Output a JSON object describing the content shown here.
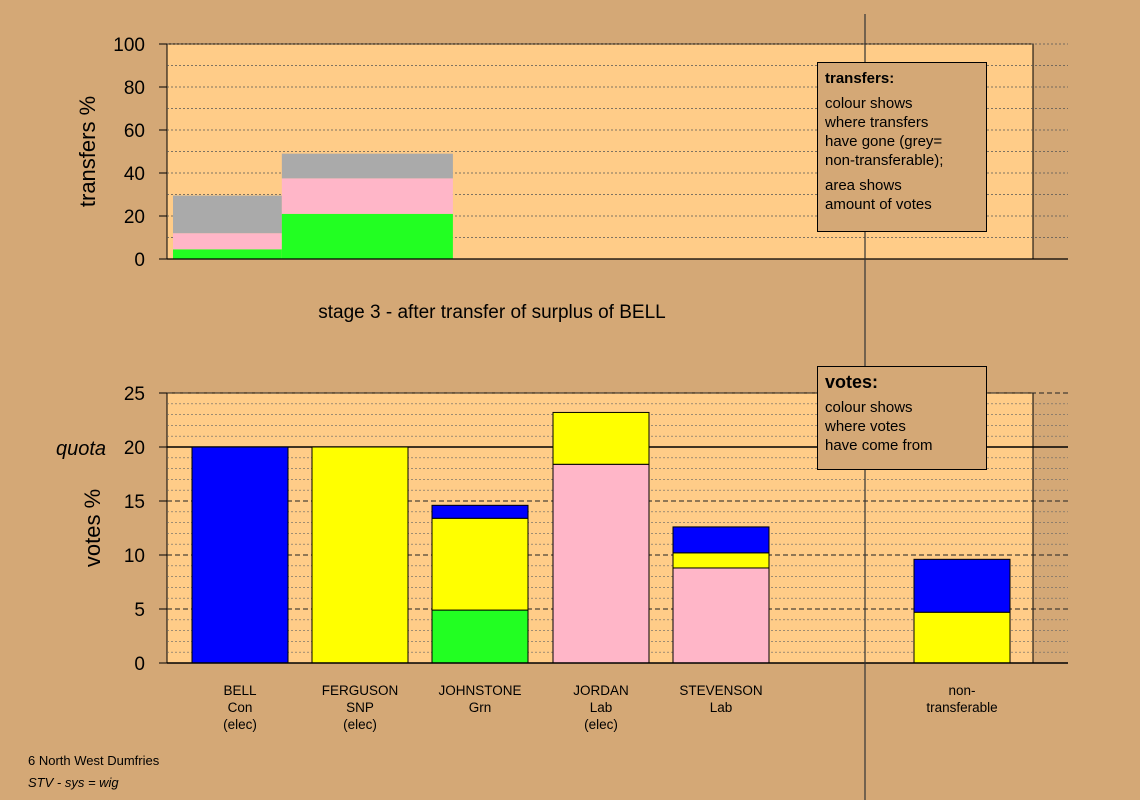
{
  "chart_data": [
    {
      "type": "bar",
      "panel": "transfers",
      "ylabel": "transfers %",
      "ylim": [
        0,
        100
      ],
      "yticks": [
        0,
        20,
        40,
        60,
        80,
        100
      ],
      "title": "stage 3 - after transfer of surplus of BELL",
      "stacked_blocks": [
        {
          "x_start": 0,
          "x_end": 3.5,
          "segments": [
            {
              "color": "#22ff22",
              "value": 4.5
            },
            {
              "color": "#ffb6c8",
              "value": 7.5
            },
            {
              "color": "#aaaaaa",
              "value": 17.5
            }
          ]
        },
        {
          "x_start": 3.5,
          "x_end": 9,
          "segments": [
            {
              "color": "#22ff22",
              "value": 21
            },
            {
              "color": "#ffb6c8",
              "value": 16.5
            },
            {
              "color": "#aaaaaa",
              "value": 11.5
            }
          ]
        }
      ]
    },
    {
      "type": "bar",
      "panel": "votes",
      "ylabel": "votes %",
      "ylim": [
        0,
        25
      ],
      "yticks": [
        0,
        5,
        10,
        15,
        20,
        25
      ],
      "quota": {
        "value": 20,
        "label": "quota"
      },
      "categories": [
        {
          "lines": [
            "BELL",
            "Con",
            "(elec)"
          ],
          "segments": [
            {
              "color": "#0000ff",
              "value": 20
            }
          ]
        },
        {
          "lines": [
            "FERGUSON",
            "SNP",
            "(elec)"
          ],
          "segments": [
            {
              "color": "#ffff00",
              "value": 20
            }
          ]
        },
        {
          "lines": [
            "JOHNSTONE",
            "Grn"
          ],
          "segments": [
            {
              "color": "#22ff22",
              "value": 4.9
            },
            {
              "color": "#ffff00",
              "value": 8.5
            },
            {
              "color": "#0000ff",
              "value": 1.2
            }
          ]
        },
        {
          "lines": [
            "JORDAN",
            "Lab",
            "(elec)"
          ],
          "segments": [
            {
              "color": "#ffb6c8",
              "value": 18.4
            },
            {
              "color": "#ffff00",
              "value": 4.8
            }
          ]
        },
        {
          "lines": [
            "STEVENSON",
            "Lab"
          ],
          "segments": [
            {
              "color": "#ffb6c8",
              "value": 8.8
            },
            {
              "color": "#ffff00",
              "value": 1.4
            },
            {
              "color": "#0000ff",
              "value": 2.4
            }
          ]
        },
        {
          "lines": [
            "non-",
            "transferable"
          ],
          "separate": true,
          "segments": [
            {
              "color": "#ffff00",
              "value": 4.7
            },
            {
              "color": "#0000ff",
              "value": 4.9
            }
          ]
        }
      ]
    }
  ],
  "legends": {
    "transfers": {
      "title": "transfers:",
      "lines1": [
        "colour shows",
        "where transfers",
        "have gone (grey=",
        "non-transferable);"
      ],
      "lines2": [
        "area shows",
        "amount of votes"
      ]
    },
    "votes": {
      "title": "votes:",
      "lines1": [
        "colour shows",
        "where votes",
        "have come from"
      ]
    }
  },
  "footer": {
    "line1": "6 North West Dumfries",
    "line2": "STV - sys = wig"
  },
  "colors": {
    "background": "#d4a876",
    "plot_area": "#ffcc88",
    "grey": "#aaaaaa",
    "pink": "#ffb6c8",
    "green": "#22ff22",
    "yellow": "#ffff00",
    "blue": "#0000ff"
  }
}
